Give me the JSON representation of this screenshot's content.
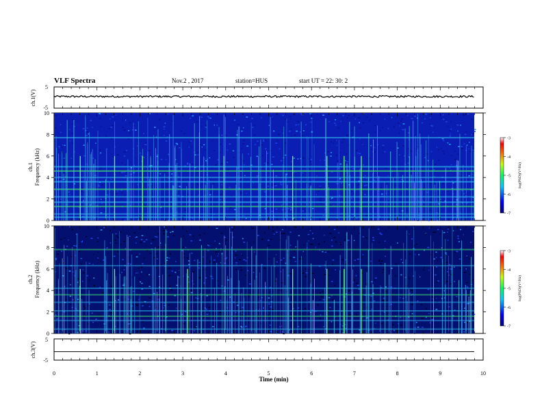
{
  "header": {
    "title": "VLF Spectra",
    "date": "Nov.2 , 2017",
    "station": "station=HUS",
    "start_time": "start UT = 22: 30: 2"
  },
  "chart_data": [
    {
      "type": "line",
      "panel": "ch1-waveform",
      "ylabel": "ch.1(V)",
      "ylim": [
        -5,
        5
      ],
      "yticks": [
        "5",
        "-5"
      ],
      "xlim": [
        0,
        10
      ],
      "baseline": 0.5,
      "description_values": {
        "x": [
          0,
          9.8
        ],
        "y": [
          0.5,
          0.5
        ]
      }
    },
    {
      "type": "heatmap",
      "panel": "ch1-spectrogram",
      "ylabel_top": "ch.1",
      "ylabel": "Frequency (kHz)",
      "ylim": [
        0,
        10
      ],
      "yticks": [
        "0",
        "2",
        "4",
        "6",
        "8",
        "10"
      ],
      "xlim": [
        0,
        9.8
      ],
      "colorbar": {
        "label": "log(PSD)(V²/Hz)",
        "range": [
          -7,
          -3
        ],
        "ticks": [
          "-3",
          "-4",
          "-5",
          "-6",
          "-7"
        ]
      },
      "bands_khz": [
        0.3,
        0.6,
        1.3,
        1.7,
        2.2,
        2.9,
        3.6,
        4.0,
        4.6,
        5.0,
        7.7
      ],
      "spike_times_min": [
        0.6,
        1.4,
        2.05,
        3.95,
        5.55,
        6.35,
        6.75,
        7.15
      ]
    },
    {
      "type": "heatmap",
      "panel": "ch2-spectrogram",
      "ylabel_top": "ch.2",
      "ylabel": "Frequency (kHz)",
      "ylim": [
        0,
        10
      ],
      "yticks": [
        "0",
        "2",
        "4",
        "6",
        "8",
        "10"
      ],
      "xlim": [
        0,
        9.8
      ],
      "colorbar": {
        "label": "log(PSD)(V²/Hz)",
        "range": [
          -7,
          -3
        ],
        "ticks": [
          "-3",
          "-4",
          "-5",
          "-6",
          "-7"
        ]
      },
      "bands_khz": [
        0.4,
        1.2,
        1.6,
        2.1,
        2.9,
        3.6,
        4.2,
        6.3,
        7.8
      ],
      "spike_times_min": [
        0.6,
        1.4,
        3.1,
        5.55,
        6.35,
        6.75,
        7.15
      ]
    },
    {
      "type": "line",
      "panel": "ch3-waveform",
      "ylabel": "ch.3(V)",
      "ylim": [
        -5,
        5
      ],
      "yticks": [
        "5",
        "-5"
      ],
      "xlim": [
        0,
        10
      ],
      "baseline": -1.0
    }
  ],
  "xaxis": {
    "label": "Time (min)",
    "ticks": [
      "0",
      "1",
      "2",
      "3",
      "4",
      "5",
      "6",
      "7",
      "8",
      "9",
      "10"
    ]
  },
  "colors": {
    "background_low": "#00003a",
    "psd_blue": "#1432d2",
    "psd_cyan": "#28b4e6",
    "psd_green": "#3cdc6e",
    "axis": "#000000"
  }
}
